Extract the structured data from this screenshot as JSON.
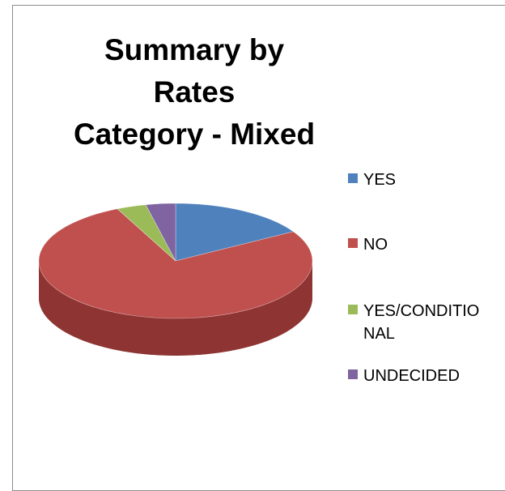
{
  "chart_data": {
    "type": "pie",
    "style": "3d",
    "title": "Summary by Rates Category - Mixed",
    "title_lines": [
      "Summary by Rates",
      "Category - Mixed"
    ],
    "legend_position": "right",
    "slices": [
      {
        "label": "YES",
        "value": 16.5,
        "color": "#4f81bd",
        "side_color": "#3b6594",
        "label_lines": [
          "YES"
        ]
      },
      {
        "label": "NO",
        "value": 76.5,
        "color": "#c0504d",
        "side_color": "#8e3533",
        "label_lines": [
          "NO"
        ]
      },
      {
        "label": "YES/CONDITIONAL",
        "value": 3.5,
        "color": "#9bbb59",
        "side_color": "#728c3f",
        "label_lines": [
          "YES/CONDITIO",
          "NAL"
        ]
      },
      {
        "label": "UNDECIDED",
        "value": 3.5,
        "color": "#8064a2",
        "side_color": "#5e4a78",
        "label_lines": [
          "UNDECIDED"
        ]
      }
    ]
  }
}
